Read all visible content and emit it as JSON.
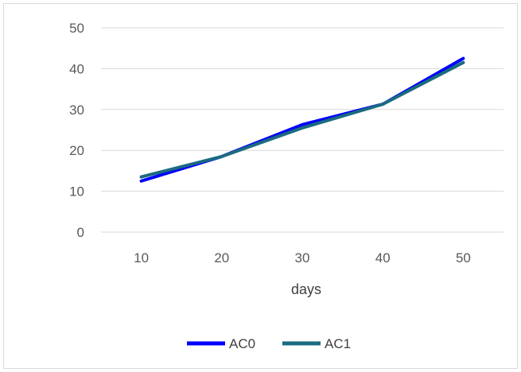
{
  "chart_data": {
    "type": "line",
    "title": "",
    "xlabel": "days",
    "ylabel": "",
    "x": [
      10,
      20,
      30,
      40,
      50
    ],
    "ylim": [
      0,
      50
    ],
    "yticks": [
      0,
      10,
      20,
      30,
      40,
      50
    ],
    "grid": true,
    "legend_position": "bottom",
    "series": [
      {
        "name": "AC0",
        "values": [
          12.5,
          18.5,
          26.3,
          31.3,
          42.5
        ],
        "color": "#0000ff"
      },
      {
        "name": "AC1",
        "values": [
          13.5,
          18.5,
          25.5,
          31.3,
          41.5
        ],
        "color": "#1b6b80"
      }
    ]
  }
}
